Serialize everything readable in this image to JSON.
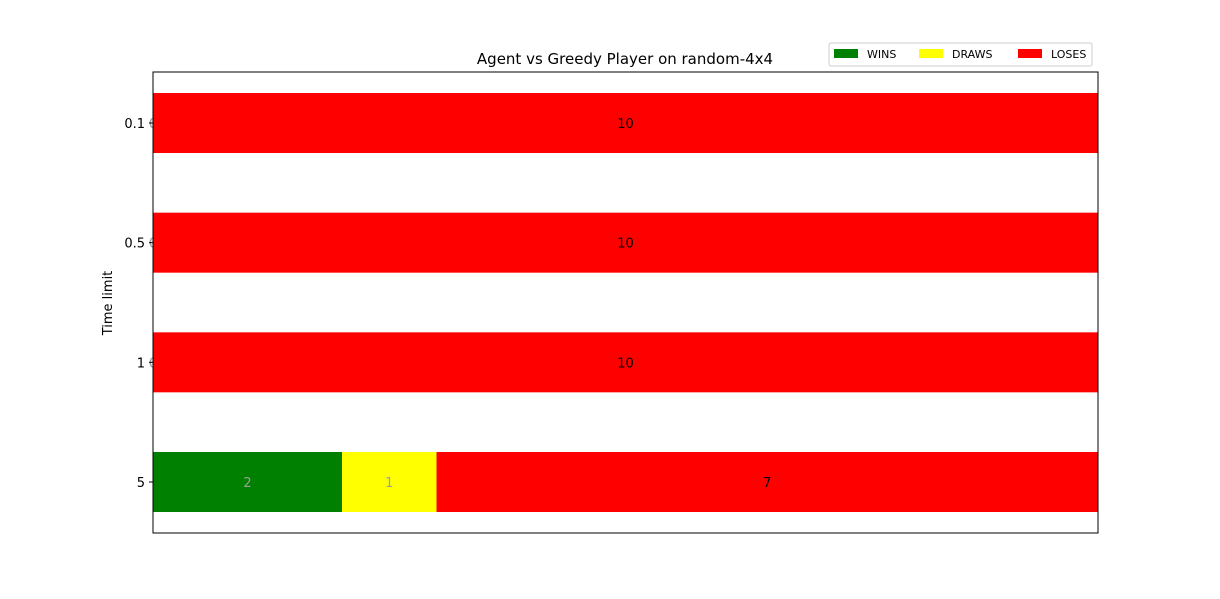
{
  "chart_data": {
    "type": "bar",
    "orientation": "horizontal",
    "stacked": true,
    "title": "Agent vs Greedy Player on random-4x4",
    "xlabel": "",
    "ylabel": "Time limit",
    "categories": [
      "0.1",
      "0.5",
      "1",
      "5"
    ],
    "series": [
      {
        "name": "WINS",
        "color": "#008000",
        "label_color": "#9e9e9e",
        "values": [
          0,
          0,
          0,
          2
        ]
      },
      {
        "name": "DRAWS",
        "color": "#ffff00",
        "label_color": "#9e9e9e",
        "values": [
          0,
          0,
          0,
          1
        ]
      },
      {
        "name": "LOSES",
        "color": "#ff0000",
        "label_color": "#000000",
        "values": [
          10,
          10,
          10,
          7
        ]
      }
    ],
    "xlim": [
      0,
      10
    ],
    "grid": false,
    "legend_placement": "top-right"
  }
}
